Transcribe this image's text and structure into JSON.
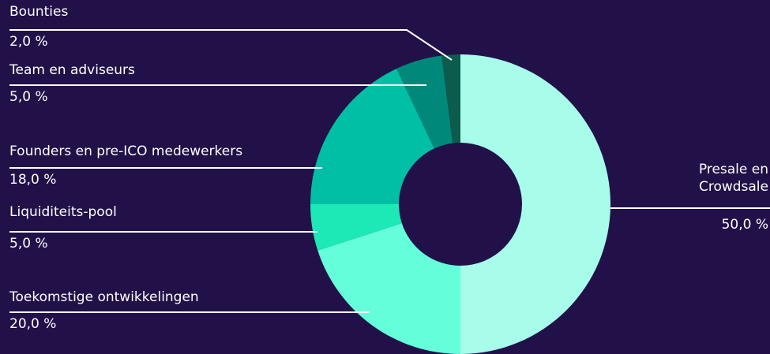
{
  "chart_data": {
    "type": "pie",
    "categories": [
      "Presale en Crowdsale",
      "Toekomstige ontwikkelingen",
      "Liquiditeits-pool",
      "Founders en pre-ICO medewerkers",
      "Team en adviseurs",
      "Bounties"
    ],
    "values": [
      50,
      20,
      5,
      18,
      5,
      2
    ],
    "value_labels": [
      "50,0 %",
      "20,0 %",
      "5,0 %",
      "18,0 %",
      "5,0 %",
      "2,0 %"
    ],
    "colors": [
      "#a7fde9",
      "#64ffda",
      "#1de9b6",
      "#00bfa5",
      "#00897b",
      "#0b5c4c"
    ]
  }
}
